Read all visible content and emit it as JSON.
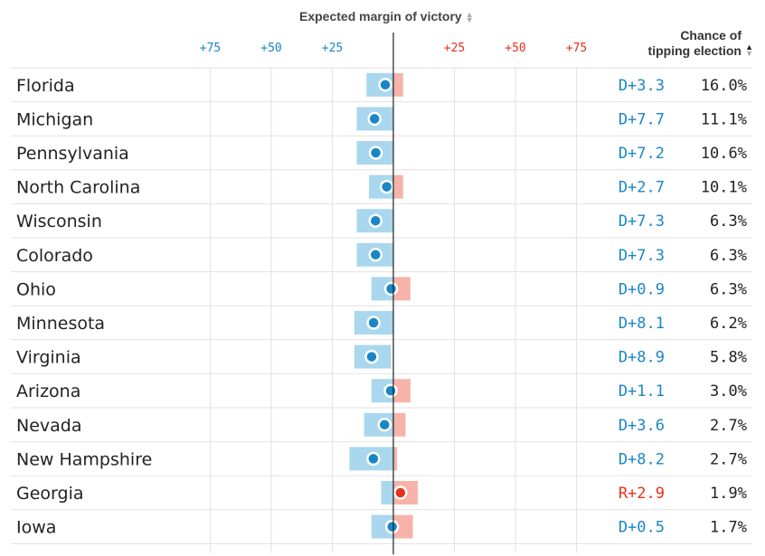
{
  "header": {
    "title": "Expected margin of victory",
    "chance_title_line1": "Chance of",
    "chance_title_line2": "tipping election"
  },
  "colors": {
    "dem": "#1a86c7",
    "dem_band": "#a9d7ee",
    "rep": "#e8301c",
    "rep_band": "#f7b3aa",
    "grid": "#e2e2e2",
    "center_line": "#222222"
  },
  "chart_data": {
    "type": "dot-range",
    "title": "Expected margin of victory",
    "x_tick_labels": [
      "+75",
      "+50",
      "+25",
      "+25",
      "+50",
      "+75"
    ],
    "x_tick_values": [
      -75,
      -50,
      -25,
      25,
      50,
      75
    ],
    "xlim": [
      -155,
      145
    ],
    "column_header": "Chance of tipping election",
    "rows": [
      {
        "state": "Florida",
        "margin_label": "D+3.3",
        "party": "D",
        "value": -3.3,
        "low": -11,
        "high": 4,
        "chance": "16.0%"
      },
      {
        "state": "Michigan",
        "margin_label": "D+7.7",
        "party": "D",
        "value": -7.7,
        "low": -15,
        "high": 0,
        "chance": "11.1%"
      },
      {
        "state": "Pennsylvania",
        "margin_label": "D+7.2",
        "party": "D",
        "value": -7.2,
        "low": -15,
        "high": 0,
        "chance": "10.6%"
      },
      {
        "state": "North Carolina",
        "margin_label": "D+2.7",
        "party": "D",
        "value": -2.7,
        "low": -10,
        "high": 4,
        "chance": "10.1%"
      },
      {
        "state": "Wisconsin",
        "margin_label": "D+7.3",
        "party": "D",
        "value": -7.3,
        "low": -15,
        "high": 0,
        "chance": "6.3%"
      },
      {
        "state": "Colorado",
        "margin_label": "D+7.3",
        "party": "D",
        "value": -7.3,
        "low": -15,
        "high": 0,
        "chance": "6.3%"
      },
      {
        "state": "Ohio",
        "margin_label": "D+0.9",
        "party": "D",
        "value": -0.9,
        "low": -9,
        "high": 7,
        "chance": "6.3%"
      },
      {
        "state": "Minnesota",
        "margin_label": "D+8.1",
        "party": "D",
        "value": -8.1,
        "low": -16,
        "high": 0,
        "chance": "6.2%"
      },
      {
        "state": "Virginia",
        "margin_label": "D+8.9",
        "party": "D",
        "value": -8.9,
        "low": -16,
        "high": -1,
        "chance": "5.8%"
      },
      {
        "state": "Arizona",
        "margin_label": "D+1.1",
        "party": "D",
        "value": -1.1,
        "low": -9,
        "high": 7,
        "chance": "3.0%"
      },
      {
        "state": "Nevada",
        "margin_label": "D+3.6",
        "party": "D",
        "value": -3.6,
        "low": -12,
        "high": 5,
        "chance": "2.7%"
      },
      {
        "state": "New Hampshire",
        "margin_label": "D+8.2",
        "party": "D",
        "value": -8.2,
        "low": -18,
        "high": 1.5,
        "chance": "2.7%"
      },
      {
        "state": "Georgia",
        "margin_label": "R+2.9",
        "party": "R",
        "value": 2.9,
        "low": -5,
        "high": 10,
        "chance": "1.9%"
      },
      {
        "state": "Iowa",
        "margin_label": "D+0.5",
        "party": "D",
        "value": -0.5,
        "low": -9,
        "high": 8,
        "chance": "1.7%"
      }
    ]
  }
}
